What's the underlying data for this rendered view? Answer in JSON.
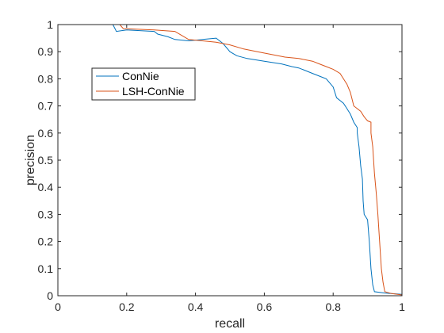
{
  "chart_data": {
    "type": "line",
    "xlabel": "recall",
    "ylabel": "precision",
    "xlim": [
      0,
      1
    ],
    "ylim": [
      0,
      1
    ],
    "x_ticks": [
      "0",
      "0.2",
      "0.4",
      "0.6",
      "0.8",
      "1"
    ],
    "y_ticks": [
      "0",
      "0.1",
      "0.2",
      "0.3",
      "0.4",
      "0.5",
      "0.6",
      "0.7",
      "0.8",
      "0.9",
      "1"
    ],
    "grid": false,
    "legend_position": "upper-left",
    "series": [
      {
        "name": "ConNie",
        "color": "#0072BD",
        "points": [
          [
            0,
            1.0
          ],
          [
            0.16,
            1.0
          ],
          [
            0.17,
            0.975
          ],
          [
            0.2,
            0.98
          ],
          [
            0.28,
            0.975
          ],
          [
            0.29,
            0.965
          ],
          [
            0.32,
            0.955
          ],
          [
            0.34,
            0.945
          ],
          [
            0.38,
            0.94
          ],
          [
            0.42,
            0.945
          ],
          [
            0.46,
            0.95
          ],
          [
            0.48,
            0.93
          ],
          [
            0.5,
            0.9
          ],
          [
            0.52,
            0.885
          ],
          [
            0.55,
            0.875
          ],
          [
            0.6,
            0.865
          ],
          [
            0.65,
            0.855
          ],
          [
            0.68,
            0.845
          ],
          [
            0.7,
            0.84
          ],
          [
            0.72,
            0.83
          ],
          [
            0.74,
            0.82
          ],
          [
            0.76,
            0.81
          ],
          [
            0.78,
            0.8
          ],
          [
            0.8,
            0.77
          ],
          [
            0.81,
            0.73
          ],
          [
            0.83,
            0.71
          ],
          [
            0.84,
            0.69
          ],
          [
            0.85,
            0.67
          ],
          [
            0.86,
            0.64
          ],
          [
            0.87,
            0.62
          ],
          [
            0.87,
            0.6
          ],
          [
            0.875,
            0.55
          ],
          [
            0.88,
            0.48
          ],
          [
            0.885,
            0.43
          ],
          [
            0.887,
            0.35
          ],
          [
            0.89,
            0.3
          ],
          [
            0.9,
            0.28
          ],
          [
            0.905,
            0.2
          ],
          [
            0.91,
            0.1
          ],
          [
            0.915,
            0.04
          ],
          [
            0.92,
            0.015
          ],
          [
            0.95,
            0.01
          ],
          [
            1.0,
            0.005
          ]
        ]
      },
      {
        "name": "LSH-ConNie",
        "color": "#D95319",
        "points": [
          [
            0,
            1.0
          ],
          [
            0.18,
            1.0
          ],
          [
            0.19,
            0.985
          ],
          [
            0.28,
            0.98
          ],
          [
            0.34,
            0.975
          ],
          [
            0.36,
            0.96
          ],
          [
            0.38,
            0.945
          ],
          [
            0.42,
            0.94
          ],
          [
            0.46,
            0.935
          ],
          [
            0.5,
            0.925
          ],
          [
            0.54,
            0.91
          ],
          [
            0.58,
            0.9
          ],
          [
            0.62,
            0.89
          ],
          [
            0.66,
            0.88
          ],
          [
            0.7,
            0.875
          ],
          [
            0.72,
            0.87
          ],
          [
            0.74,
            0.865
          ],
          [
            0.76,
            0.855
          ],
          [
            0.78,
            0.845
          ],
          [
            0.8,
            0.835
          ],
          [
            0.82,
            0.82
          ],
          [
            0.83,
            0.8
          ],
          [
            0.84,
            0.78
          ],
          [
            0.85,
            0.75
          ],
          [
            0.86,
            0.7
          ],
          [
            0.88,
            0.68
          ],
          [
            0.89,
            0.66
          ],
          [
            0.9,
            0.645
          ],
          [
            0.91,
            0.64
          ],
          [
            0.91,
            0.6
          ],
          [
            0.915,
            0.55
          ],
          [
            0.92,
            0.45
          ],
          [
            0.925,
            0.38
          ],
          [
            0.93,
            0.3
          ],
          [
            0.935,
            0.2
          ],
          [
            0.94,
            0.1
          ],
          [
            0.945,
            0.05
          ],
          [
            0.95,
            0.015
          ],
          [
            0.97,
            0.008
          ],
          [
            1.0,
            0.003
          ]
        ]
      }
    ]
  }
}
